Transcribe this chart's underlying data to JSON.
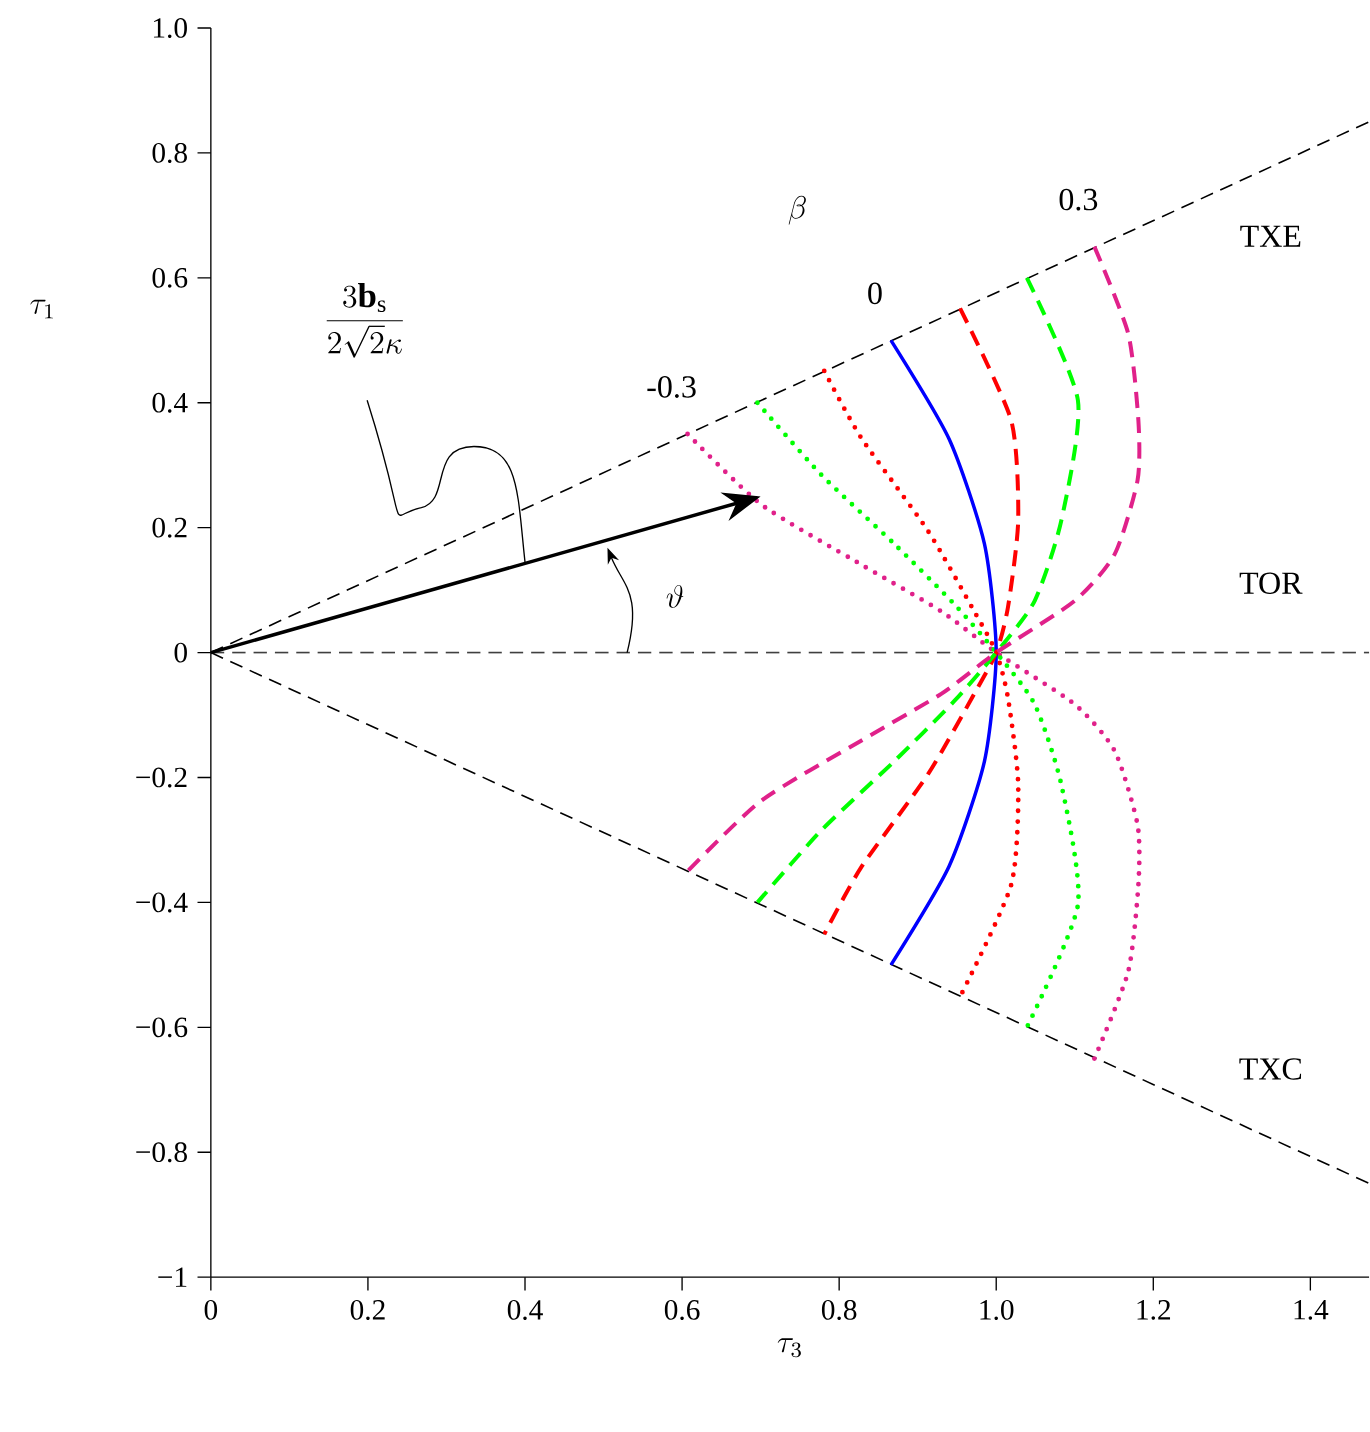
{
  "chart_data": {
    "type": "line",
    "xlabel": "\\tau_3",
    "ylabel": "\\tau_1",
    "annotations": [
      "\\frac{3\\mathbf{b}_\\mathrm{s}}{2\\sqrt{2}\\kappa}",
      "\\vartheta",
      "\\beta"
    ],
    "xlim": [
      0,
      1.475
    ],
    "ylim": [
      -1,
      1
    ],
    "xticks": [
      0,
      0.2,
      0.4,
      0.6,
      0.8,
      {
        "value": 1.0,
        "label": "1.0"
      },
      1.2,
      1.4
    ],
    "yticks": [
      {
        "value": -1,
        "label": "−1"
      },
      {
        "value": -0.8,
        "label": "−0.8"
      },
      {
        "value": -0.6,
        "label": "−0.6"
      },
      {
        "value": -0.4,
        "label": "−0.4"
      },
      {
        "value": -0.2,
        "label": "−0.2"
      },
      0,
      0.2,
      0.4,
      0.6,
      0.8,
      {
        "value": 1.0,
        "label": "1.0"
      }
    ],
    "grid": false,
    "marker": "none",
    "series": [
      {
        "name": "TXE",
        "color": "#000000",
        "line_style": "dashed",
        "x": [
          0,
          1.475
        ],
        "values": [
          0,
          0.85
        ]
      },
      {
        "name": "TOR",
        "color": "#404040",
        "line_style": "dashed",
        "x": [
          0,
          1.475
        ],
        "values": [
          0,
          0
        ]
      },
      {
        "name": "TXC",
        "color": "#000000",
        "line_style": "dashed",
        "x": [
          0,
          1.475
        ],
        "values": [
          0,
          -0.85
        ]
      },
      {
        "name": "-0.3",
        "color": "#e0218a",
        "line_style": "dotted",
        "x": [
          0.607,
          0.701,
          0.828,
          0.93,
          1.0,
          1.1,
          1.151,
          1.18,
          1.181,
          1.168,
          1.125
        ],
        "values": [
          0.35,
          0.237,
          0.141,
          0.066,
          0,
          -0.083,
          -0.158,
          -0.276,
          -0.372,
          -0.511,
          -0.65
        ]
      },
      {
        "color": "#00ff00",
        "line_style": "dotted",
        "x": [
          0.696,
          0.777,
          0.871,
          0.947,
          1.0,
          1.049,
          1.083,
          1.104,
          1.039
        ],
        "values": [
          0.4,
          0.285,
          0.173,
          0.077,
          0,
          -0.083,
          -0.212,
          -0.404,
          -0.6
        ]
      },
      {
        "color": "#ff0000",
        "line_style": "dotted",
        "x": [
          0.781,
          0.828,
          0.913,
          0.972,
          1.0,
          1.015,
          1.028,
          1.019,
          0.954
        ],
        "values": [
          0.451,
          0.344,
          0.195,
          0.066,
          0,
          -0.073,
          -0.212,
          -0.372,
          -0.551
        ]
      },
      {
        "name": "0",
        "color": "#0000ff",
        "line_style": "solid",
        "x": [
          0.866,
          0.94,
          0.985,
          1.0,
          0.985,
          0.94,
          0.866
        ],
        "values": [
          0.5,
          0.342,
          0.174,
          0,
          -0.174,
          -0.342,
          -0.5
        ]
      },
      {
        "color": "#ff0000",
        "line_style": "dashed",
        "x": [
          0.954,
          1.019,
          1.028,
          1.015,
          1.0,
          0.972,
          0.913,
          0.828,
          0.781
        ],
        "values": [
          0.551,
          0.372,
          0.212,
          0.073,
          0,
          -0.066,
          -0.195,
          -0.344,
          -0.451
        ]
      },
      {
        "color": "#00ff00",
        "line_style": "dashed",
        "x": [
          1.039,
          1.104,
          1.083,
          1.049,
          1.0,
          0.947,
          0.871,
          0.777,
          0.696
        ],
        "values": [
          0.6,
          0.404,
          0.212,
          0.083,
          0,
          -0.077,
          -0.173,
          -0.285,
          -0.4
        ]
      },
      {
        "name": "0.3",
        "color": "#e0218a",
        "line_style": "dashed",
        "x": [
          1.125,
          1.168,
          1.181,
          1.18,
          1.151,
          1.1,
          1.0,
          0.93,
          0.828,
          0.701,
          0.607
        ],
        "values": [
          0.65,
          0.511,
          0.372,
          0.276,
          0.158,
          0.083,
          0,
          -0.066,
          -0.141,
          -0.237,
          -0.35
        ]
      }
    ]
  }
}
